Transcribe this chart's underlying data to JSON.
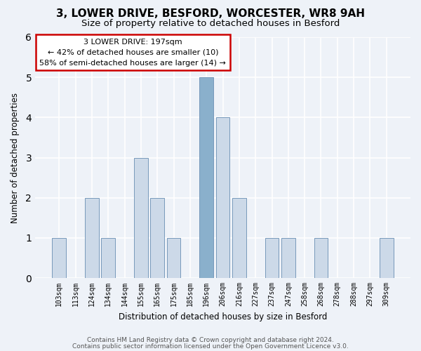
{
  "title1": "3, LOWER DRIVE, BESFORD, WORCESTER, WR8 9AH",
  "title2": "Size of property relative to detached houses in Besford",
  "xlabel": "Distribution of detached houses by size in Besford",
  "ylabel": "Number of detached properties",
  "footer1": "Contains HM Land Registry data © Crown copyright and database right 2024.",
  "footer2": "Contains public sector information licensed under the Open Government Licence v3.0.",
  "annotation_line1": "3 LOWER DRIVE: 197sqm",
  "annotation_line2": "← 42% of detached houses are smaller (10)",
  "annotation_line3": "58% of semi-detached houses are larger (14) →",
  "bar_labels": [
    "103sqm",
    "113sqm",
    "124sqm",
    "134sqm",
    "144sqm",
    "155sqm",
    "165sqm",
    "175sqm",
    "185sqm",
    "196sqm",
    "206sqm",
    "216sqm",
    "227sqm",
    "237sqm",
    "247sqm",
    "258sqm",
    "268sqm",
    "278sqm",
    "288sqm",
    "297sqm",
    "309sqm"
  ],
  "bar_values": [
    1,
    0,
    2,
    1,
    0,
    3,
    2,
    1,
    0,
    5,
    4,
    2,
    0,
    1,
    1,
    0,
    1,
    0,
    0,
    0,
    1
  ],
  "highlight_index": 9,
  "bar_color_normal": "#ccd9e8",
  "bar_color_highlight": "#8ab0cc",
  "bar_edge_color": "#7799bb",
  "annotation_box_color": "#ffffff",
  "annotation_box_edge": "#cc0000",
  "background_color": "#eef2f8",
  "axes_bg_color": "#eef2f8",
  "grid_color": "#ffffff",
  "ylim": [
    0,
    6
  ],
  "yticks": [
    0,
    1,
    2,
    3,
    4,
    5,
    6
  ],
  "title1_fontsize": 11,
  "title2_fontsize": 9.5
}
